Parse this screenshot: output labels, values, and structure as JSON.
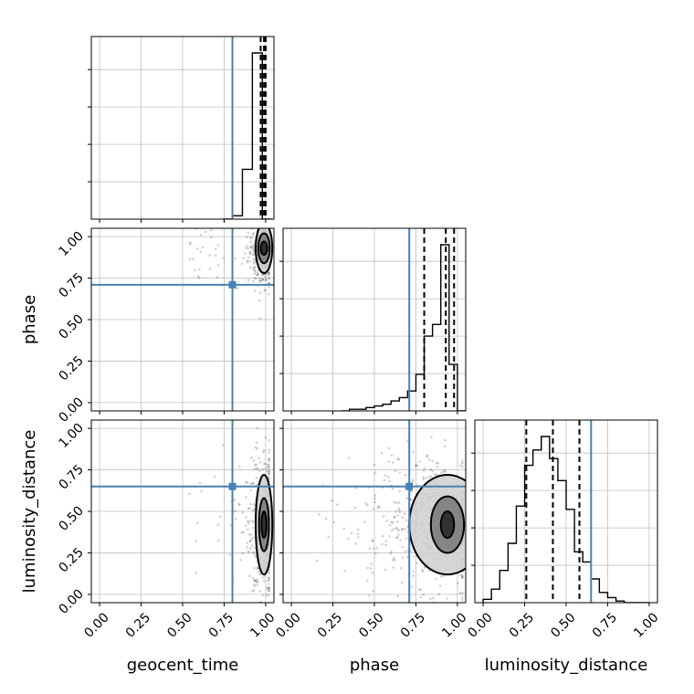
{
  "chart_data": {
    "type": "corner",
    "parameters": [
      "geocent_time",
      "phase",
      "luminosity_distance"
    ],
    "axis_labels": {
      "geocent_time": "geocent_time",
      "phase": "phase",
      "luminosity_distance": "luminosity_distance"
    },
    "tick_labels": [
      "0.00",
      "0.25",
      "0.50",
      "0.75",
      "1.00"
    ],
    "range": [
      -0.05,
      1.05
    ],
    "grid": true,
    "colors": {
      "truth": "#4682b4",
      "hist": "#000000",
      "quantile": "#000000",
      "scatter": "#000000",
      "grid": "#c0c0c0"
    },
    "truths": {
      "geocent_time": 0.8,
      "phase": 0.71,
      "luminosity_distance": 0.65
    },
    "histograms": {
      "geocent_time": {
        "bin_edges": [
          0.74,
          0.8,
          0.86,
          0.92,
          0.98,
          1.04
        ],
        "values": [
          0.0,
          0.02,
          0.3,
          1.0,
          0.0
        ],
        "quantiles": [
          0.97,
          0.99,
          1.0
        ]
      },
      "phase": {
        "bin_edges": [
          0.3,
          0.35,
          0.4,
          0.45,
          0.5,
          0.55,
          0.6,
          0.65,
          0.7,
          0.75,
          0.8,
          0.85,
          0.9,
          0.95,
          1.0,
          1.05
        ],
        "values": [
          0.0,
          0.01,
          0.01,
          0.02,
          0.03,
          0.04,
          0.06,
          0.08,
          0.12,
          0.22,
          0.45,
          0.52,
          1.0,
          0.28,
          0.0
        ],
        "quantiles": [
          0.8,
          0.93,
          0.98
        ]
      },
      "luminosity_distance": {
        "bin_edges": [
          0.0,
          0.05,
          0.1,
          0.15,
          0.2,
          0.25,
          0.3,
          0.35,
          0.4,
          0.45,
          0.5,
          0.55,
          0.6,
          0.65,
          0.7,
          0.75,
          0.8,
          0.85,
          0.9,
          0.95,
          1.0
        ],
        "values": [
          0.02,
          0.08,
          0.19,
          0.35,
          0.57,
          0.81,
          0.9,
          0.98,
          0.85,
          0.72,
          0.55,
          0.3,
          0.24,
          0.14,
          0.06,
          0.03,
          0.01,
          0.0,
          0.0,
          0.0
        ],
        "quantiles": [
          0.26,
          0.42,
          0.58
        ]
      }
    },
    "pairs": [
      {
        "x": "geocent_time",
        "y": "phase",
        "center": [
          0.99,
          0.93
        ],
        "contours": [
          {
            "rx": 0.02,
            "ry": 0.04
          },
          {
            "rx": 0.035,
            "ry": 0.09
          },
          {
            "rx": 0.05,
            "ry": 0.15
          }
        ]
      },
      {
        "x": "geocent_time",
        "y": "luminosity_distance",
        "center": [
          0.99,
          0.42
        ],
        "contours": [
          {
            "rx": 0.015,
            "ry": 0.08
          },
          {
            "rx": 0.03,
            "ry": 0.16
          },
          {
            "rx": 0.05,
            "ry": 0.3
          }
        ]
      },
      {
        "x": "phase",
        "y": "luminosity_distance",
        "center": [
          0.94,
          0.42
        ],
        "contours": [
          {
            "rx": 0.04,
            "ry": 0.08
          },
          {
            "rx": 0.1,
            "ry": 0.17
          },
          {
            "rx": 0.23,
            "ry": 0.3
          }
        ]
      }
    ]
  }
}
